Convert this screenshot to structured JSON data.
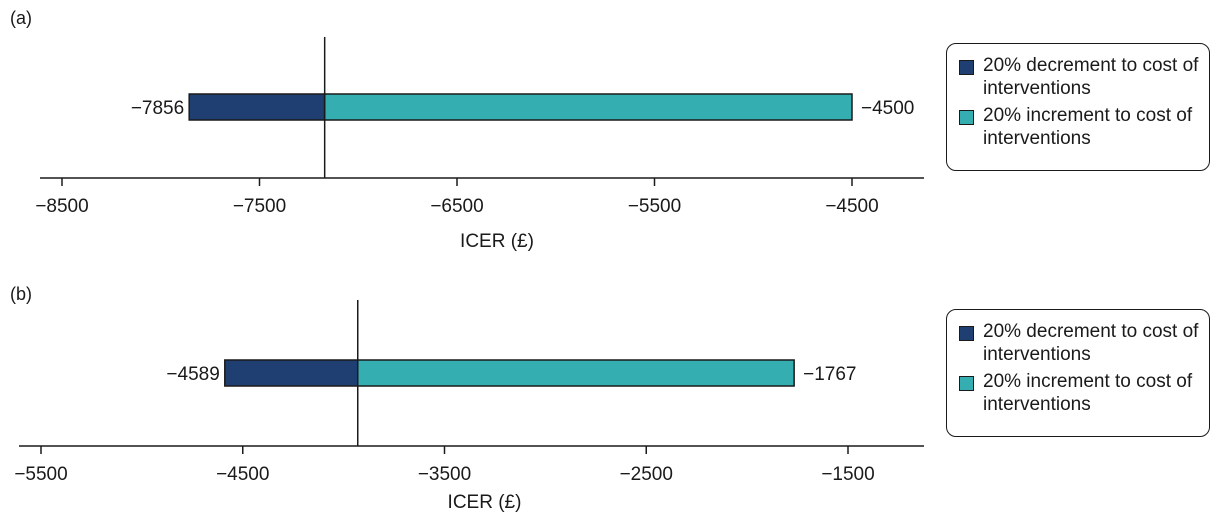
{
  "chart_data": [
    {
      "type": "tornado",
      "panel_label": "(a)",
      "xlabel": "ICER (£)",
      "xlim": [
        -8500,
        -4500
      ],
      "ticks": [
        -8500,
        -7500,
        -6500,
        -5500,
        -4500
      ],
      "tick_labels": [
        "−8500",
        "−7500",
        "−6500",
        "−5500",
        "−4500"
      ],
      "base_value": -7170,
      "bars": [
        {
          "series": "decrement",
          "from": -7856,
          "to": -7170,
          "label": "−7856",
          "color": "#1f3f73"
        },
        {
          "series": "increment",
          "from": -7170,
          "to": -4500,
          "label": "−4500",
          "color": "#35aeb2"
        }
      ],
      "legend": {
        "placement": "right",
        "items": [
          {
            "text": "20% decrement to cost of interventions",
            "color": "#1f3f73"
          },
          {
            "text": "20% increment to cost of interventions",
            "color": "#35aeb2"
          }
        ]
      }
    },
    {
      "type": "tornado",
      "panel_label": "(b)",
      "xlabel": "ICER (£)",
      "xlim": [
        -5500,
        -1500
      ],
      "ticks": [
        -5500,
        -4500,
        -3500,
        -2500,
        -1500
      ],
      "tick_labels": [
        "−5500",
        "−4500",
        "−3500",
        "−2500",
        "−1500"
      ],
      "base_value": -3930,
      "bars": [
        {
          "series": "decrement",
          "from": -4589,
          "to": -3930,
          "label": "−4589",
          "color": "#1f3f73"
        },
        {
          "series": "increment",
          "from": -3930,
          "to": -1767,
          "label": "−1767",
          "color": "#35aeb2"
        }
      ],
      "legend": {
        "placement": "right",
        "items": [
          {
            "text": "20% decrement to cost of interventions",
            "color": "#1f3f73"
          },
          {
            "text": "20% increment to cost of interventions",
            "color": "#35aeb2"
          }
        ]
      }
    }
  ]
}
